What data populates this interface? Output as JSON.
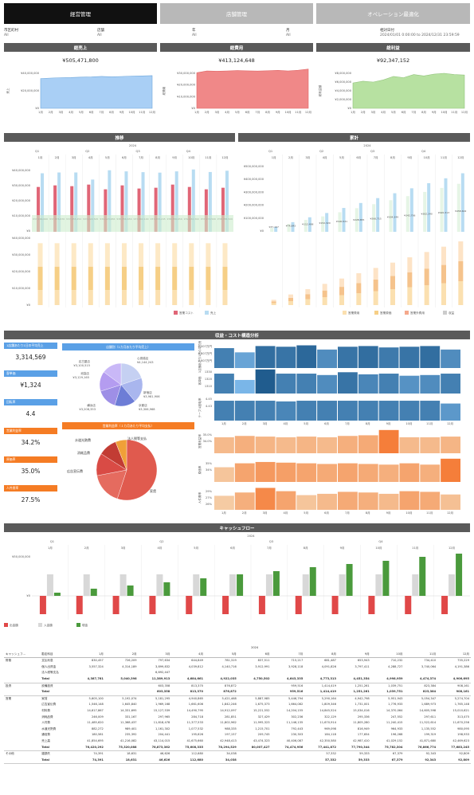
{
  "tabs": [
    {
      "label": "経営管理",
      "active": true
    },
    {
      "label": "店舗管理",
      "active": false
    },
    {
      "label": "オペレーション最適化",
      "active": false
    }
  ],
  "filters": [
    {
      "label": "市区町村",
      "value": "All"
    },
    {
      "label": "店舗",
      "value": "All"
    },
    {
      "label": "年",
      "value": "All"
    },
    {
      "label": "月",
      "value": "All"
    },
    {
      "label": "相対日付",
      "value": "2024/01/01 0:00:00 to 2024/12/31 23:59:59"
    }
  ],
  "kpis": [
    {
      "title": "総売上",
      "value": "¥505,471,800",
      "ylabel": "売上",
      "yticks": [
        "¥40,000,000",
        "¥20,000,000",
        "¥0"
      ],
      "color": "#a9cff5",
      "stroke": "#6fa8dc",
      "series": [
        34,
        34.5,
        35,
        35.2,
        35.6,
        35.8,
        36.5,
        36,
        36.4,
        36.8,
        37,
        37.4
      ]
    },
    {
      "title": "総費用",
      "value": "¥413,124,648",
      "ylabel": "総費用",
      "yticks": [
        "¥30,000,000",
        "¥20,000,000",
        "¥10,000,000",
        "¥0"
      ],
      "color": "#f08888",
      "stroke": "#e06666",
      "series": [
        30.5,
        32,
        31.8,
        32,
        32.3,
        32.1,
        31.9,
        32.2,
        32.5,
        32,
        32.6,
        33.6
      ]
    },
    {
      "title": "総利益",
      "value": "¥92,347,152",
      "ylabel": "総利益額",
      "yticks": [
        "¥8,000,000",
        "¥6,000,000",
        "¥4,000,000",
        "¥2,000,000",
        "¥0"
      ],
      "color": "#b7e1a1",
      "stroke": "#93c47d",
      "series": [
        5.8,
        6.2,
        6,
        6.5,
        7.3,
        7.0,
        7.7,
        7.4,
        7.8,
        8.0,
        7.7,
        7.6
      ]
    }
  ],
  "months": [
    "1月",
    "2月",
    "3月",
    "4月",
    "5月",
    "6月",
    "7月",
    "8月",
    "9月",
    "10月",
    "11月",
    "12月"
  ],
  "year": "2024",
  "quarters": [
    "Q1",
    "Q2",
    "Q3",
    "Q4"
  ],
  "trend": {
    "title": "推移",
    "yticks": [
      "¥40,000,000",
      "¥30,000,000",
      "¥20,000,000",
      "¥10,000,000",
      "¥0"
    ],
    "yticks2": [
      "¥40,000,000",
      "¥30,000,000",
      "¥20,000,000",
      "¥10,000,000",
      "¥0"
    ],
    "labels": [
      "¥37,166,666",
      "¥37,676,676",
      "¥37,655,252",
      "¥33,222,545",
      "¥39,123,656",
      "¥38,356,656",
      "¥37,862,100",
      "¥37,633,245",
      "¥38,356,656",
      "¥39,632,300",
      "¥37,973,506",
      "¥38,788,506"
    ],
    "legend": [
      "営業コスト",
      "売上"
    ]
  },
  "cumulative": {
    "title": "累計",
    "yticks": [
      "¥500,000,000",
      "¥400,000,000",
      "¥300,000,000",
      "¥200,000,000",
      "¥100,000,000",
      "¥0"
    ],
    "labels": [
      "¥37,167",
      "¥74,843",
      "¥112,498",
      "¥152,320",
      "¥190,521",
      "¥228,855",
      "¥266,715",
      "¥304,349",
      "¥342,706",
      "¥382,340",
      "¥420,313",
      "¥458,602"
    ],
    "legend": [
      "営業費用",
      "営業原価",
      "営業外費用",
      "収益"
    ]
  },
  "analysis": {
    "title": "収益・コスト構造分析",
    "kpi_list": [
      {
        "title": "1店舗あたり1日の平均売上",
        "value": "3,314,569",
        "color": "#5aa0e6"
      },
      {
        "title": "客単価",
        "value": "¥1,324",
        "color": "#5aa0e6"
      },
      {
        "title": "回転率",
        "value": "4.4",
        "color": "#5aa0e6"
      },
      {
        "title": "営業利益率",
        "value": "34.2%",
        "color": "#f57c24"
      },
      {
        "title": "原価率",
        "value": "35.0%",
        "color": "#f57c24"
      },
      {
        "title": "人件費率",
        "value": "27.5%",
        "color": "#f57c24"
      }
    ],
    "pie1": {
      "title": "店舗別（1カ月あたり平均売上）",
      "slices": [
        {
          "name": "心斎橋店",
          "value": 4144243,
          "label": "¥4,144,243",
          "color": "#c5d0f2"
        },
        {
          "name": "新宿店",
          "value": 3981906,
          "label": "¥3,981,906",
          "color": "#a9b6ee"
        },
        {
          "name": "京都店",
          "value": 3306968,
          "label": "¥3,306,968",
          "color": "#6d7dd6"
        },
        {
          "name": "横浜店",
          "value": 3208353,
          "label": "¥3,208,353",
          "color": "#9e8fe6"
        },
        {
          "name": "池袋店",
          "value": 3129165,
          "label": "¥3,129,165",
          "color": "#b49cf0"
        },
        {
          "name": "名古屋店",
          "value": 3100515,
          "label": "¥3,100,515",
          "color": "#c9b8f7"
        }
      ]
    },
    "pie2": {
      "title": "営業利益率（１カ月あたり平均支払）",
      "slices": [
        {
          "name": "家賃",
          "value": 55,
          "color": "#e05a4e"
        },
        {
          "name": "広告宣伝費",
          "value": 17,
          "color": "#e56b5f"
        },
        {
          "name": "消耗品費",
          "value": 12,
          "color": "#d94b45"
        },
        {
          "name": "水道光熱費",
          "value": 10,
          "color": "#c23c34"
        },
        {
          "name": "法人税等支払",
          "value": 6,
          "color": "#f0a038"
        }
      ]
    },
    "blue_rows": [
      {
        "label": "1店舗あたり1日の平均売上",
        "ticks": [
          "4,007万円",
          "4,007万円",
          "4,007万円"
        ]
      },
      {
        "label": "客単価",
        "ticks": [
          "1330",
          "1320",
          "1310"
        ]
      },
      {
        "label": "テーブル回転率",
        "ticks": [
          "4.45",
          "4.43"
        ]
      }
    ],
    "orange_rows": [
      {
        "label": "営業利益率",
        "ticks": [
          "35.0%",
          "34.0%"
        ]
      },
      {
        "label": "原価率",
        "ticks": [
          "35%",
          "34%"
        ]
      },
      {
        "label": "人件費率",
        "ticks": [
          "29%",
          "27%",
          "26%"
        ]
      }
    ]
  },
  "cashflow": {
    "title": "キャッシュフロー",
    "yticks": [
      "¥50,000,000",
      "¥0"
    ],
    "legend": [
      "出金額",
      "入金額",
      "現金"
    ],
    "out": [
      -23,
      -23,
      -23,
      -23,
      -23,
      -23,
      -23,
      -23,
      -23,
      -23,
      -23,
      -23
    ],
    "in": [
      27,
      27,
      27,
      27,
      27,
      27,
      27,
      27,
      27,
      27,
      27,
      27
    ],
    "cash": [
      4,
      9,
      13,
      17,
      22,
      27,
      31,
      36,
      40,
      44,
      49,
      53
    ]
  },
  "table": {
    "year": "2024",
    "col1": "キャッシュフ...",
    "col2": "勘定科目",
    "rows": [
      {
        "cat": "財務",
        "item": "支払利息",
        "vals": [
          "830,457",
          "726,209",
          "797,634",
          "644,849",
          "781,319",
          "837,511",
          "715,217",
          "681,487",
          "653,943",
          "710,232",
          "734,410",
          "735,229"
        ]
      },
      {
        "cat": "",
        "item": "個人出資金",
        "vals": [
          "3,557,324",
          "4,314,189",
          "3,899,832",
          "4,039,812",
          "4,140,716",
          "3,912,991",
          "3,928,118",
          "4,091,826",
          "3,797,411",
          "4,288,727",
          "3,740,064",
          "4,191,386"
        ]
      },
      {
        "cat": "",
        "item": "法人税等支払",
        "vals": [
          "",
          "",
          "6,692,447",
          "",
          "",
          "",
          "",
          "",
          "",
          "",
          "",
          ""
        ]
      },
      {
        "cat": "",
        "item": "Total",
        "total": true,
        "vals": [
          "4,387,781",
          "5,040,398",
          "11,389,913",
          "4,684,661",
          "4,922,035",
          "4,750,502",
          "4,643,335",
          "4,773,313",
          "4,451,354",
          "4,998,959",
          "4,474,374",
          "4,906,695"
        ]
      },
      {
        "cat": "投資",
        "item": "設備投資",
        "vals": [
          "",
          "",
          "603,358",
          "813,370",
          "876,872",
          "",
          "959,516",
          "1,414,419",
          "1,251,261",
          "1,039,751",
          "823,384",
          "908,161"
        ]
      },
      {
        "cat": "",
        "item": "Total",
        "total": true,
        "vals": [
          "",
          "",
          "603,358",
          "813,370",
          "876,872",
          "",
          "959,516",
          "1,414,419",
          "1,251,261",
          "1,039,751",
          "823,384",
          "908,161"
        ]
      },
      {
        "cat": "営業",
        "item": "家賃",
        "vals": [
          "5,605,100",
          "5,192,074",
          "5,181,295",
          "4,940,865",
          "5,421,468",
          "5,887,985",
          "5,446,794",
          "5,290,164",
          "4,942,798",
          "5,951,943",
          "5,054,347",
          "5,274,704"
        ]
      },
      {
        "cat": "",
        "item": "広告宣伝費",
        "vals": [
          "1,546,148",
          "1,645,840",
          "1,969,168",
          "1,661,606",
          "1,842,246",
          "1,675,373",
          "1,664,082",
          "1,809,346",
          "1,731,001",
          "1,776,933",
          "1,689,973",
          "1,765,148"
        ]
      },
      {
        "cat": "",
        "item": "材料費",
        "vals": [
          "14,617,867",
          "14,331,695",
          "15,127,539",
          "14,490,795",
          "14,912,097",
          "15,221,552",
          "14,204,155",
          "14,845,524",
          "15,034,016",
          "14,370,064",
          "14,605,598",
          "15,010,621"
        ]
      },
      {
        "cat": "",
        "item": "消耗品費",
        "vals": [
          "246,009",
          "331,167",
          "297,965",
          "284,718",
          "281,851",
          "327,429",
          "302,236",
          "322,129",
          "295,336",
          "247,552",
          "297,611",
          "313,475"
        ]
      },
      {
        "cat": "",
        "item": "人件費",
        "vals": [
          "11,485,620",
          "11,368,437",
          "11,818,478",
          "11,377,533",
          "11,802,962",
          "11,995,323",
          "11,146,135",
          "11,670,914",
          "11,805,280",
          "11,240,415",
          "11,522,614",
          "11,670,256"
        ]
      },
      {
        "cat": "",
        "item": "水道光熱費",
        "vals": [
          "882,272",
          "989,401",
          "1,161,302",
          "1,077,532",
          "988,335",
          "1,215,701",
          "792,443",
          "969,098",
          "816,949",
          "964,933",
          "1,135,552",
          "980,095"
        ]
      },
      {
        "cat": "",
        "item": "通信費",
        "vals": [
          "180,581",
          "235,392",
          "204,441",
          "195,626",
          "197,157",
          "209,745",
          "230,303",
          "184,118",
          "177,654",
          "196,268",
          "199,319",
          "198,933"
        ]
      },
      {
        "cat": "",
        "item": "売上高",
        "vals": [
          "41,854,695",
          "41,216,082",
          "43,114,015",
          "41,675,660",
          "42,948,413",
          "43,474,323",
          "40,406,087",
          "42,350,580",
          "42,987,410",
          "41,029,152",
          "41,871,680",
          "42,469,623"
        ]
      },
      {
        "cat": "",
        "item": "Total",
        "total": true,
        "vals": [
          "76,420,292",
          "75,320,088",
          "78,873,362",
          "75,608,335",
          "78,294,529",
          "80,007,427",
          "74,474,956",
          "77,441,872",
          "77,790,344",
          "75,782,304",
          "76,866,774",
          "77,683,245"
        ]
      },
      {
        "cat": "その他",
        "item": "雑損失",
        "vals": [
          "74,391",
          "18,631",
          "46,626",
          "112,680",
          "34,038",
          "",
          "",
          "57,332",
          "59,333",
          "67,379",
          "92,343",
          "92,809"
        ]
      },
      {
        "cat": "",
        "item": "Total",
        "total": true,
        "vals": [
          "74,391",
          "18,631",
          "46,626",
          "112,680",
          "34,038",
          "",
          "",
          "57,332",
          "59,333",
          "67,379",
          "92,343",
          "92,809"
        ]
      }
    ]
  }
}
